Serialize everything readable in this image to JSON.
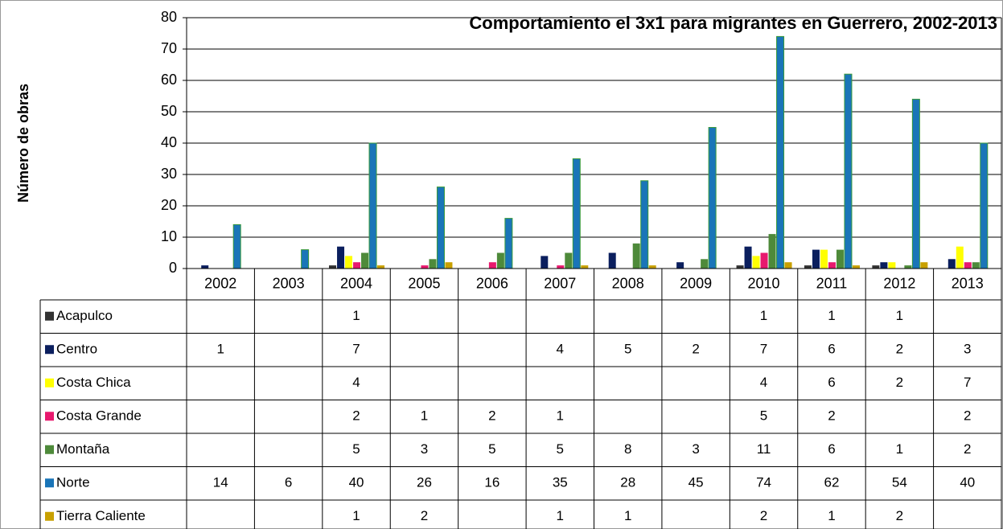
{
  "chart_data": {
    "type": "bar",
    "title": "Comportamiento el 3x1 para migrantes en Guerrero, 2002-2013",
    "y_label": "Número de obras",
    "categories": [
      "2002",
      "2003",
      "2004",
      "2005",
      "2006",
      "2007",
      "2008",
      "2009",
      "2010",
      "2011",
      "2012",
      "2013"
    ],
    "ylim": [
      0,
      80
    ],
    "yticks": [
      0,
      10,
      20,
      30,
      40,
      50,
      60,
      70,
      80
    ],
    "grid": true,
    "series": [
      {
        "name": "Acapulco",
        "color": "#333333",
        "values": [
          null,
          null,
          1,
          null,
          null,
          null,
          null,
          null,
          1,
          1,
          1,
          null
        ]
      },
      {
        "name": "Centro",
        "color": "#0b1f5e",
        "values": [
          1,
          null,
          7,
          null,
          null,
          4,
          5,
          2,
          7,
          6,
          2,
          3
        ]
      },
      {
        "name": "Costa Chica",
        "color": "#ffff00",
        "values": [
          null,
          null,
          4,
          null,
          null,
          null,
          null,
          null,
          4,
          6,
          2,
          7
        ]
      },
      {
        "name": "Costa Grande",
        "color": "#e8196e",
        "values": [
          null,
          null,
          2,
          1,
          2,
          1,
          null,
          null,
          5,
          2,
          null,
          2
        ]
      },
      {
        "name": "Montaña",
        "color": "#4e8a3a",
        "values": [
          null,
          null,
          5,
          3,
          5,
          5,
          8,
          3,
          11,
          6,
          1,
          2
        ]
      },
      {
        "name": "Norte",
        "color": "#1a75b8",
        "values": [
          14,
          6,
          40,
          26,
          16,
          35,
          28,
          45,
          74,
          62,
          54,
          40
        ]
      },
      {
        "name": "Tierra Caliente",
        "color": "#c8a000",
        "values": [
          null,
          null,
          1,
          2,
          null,
          1,
          1,
          null,
          2,
          1,
          2,
          null
        ]
      }
    ]
  }
}
